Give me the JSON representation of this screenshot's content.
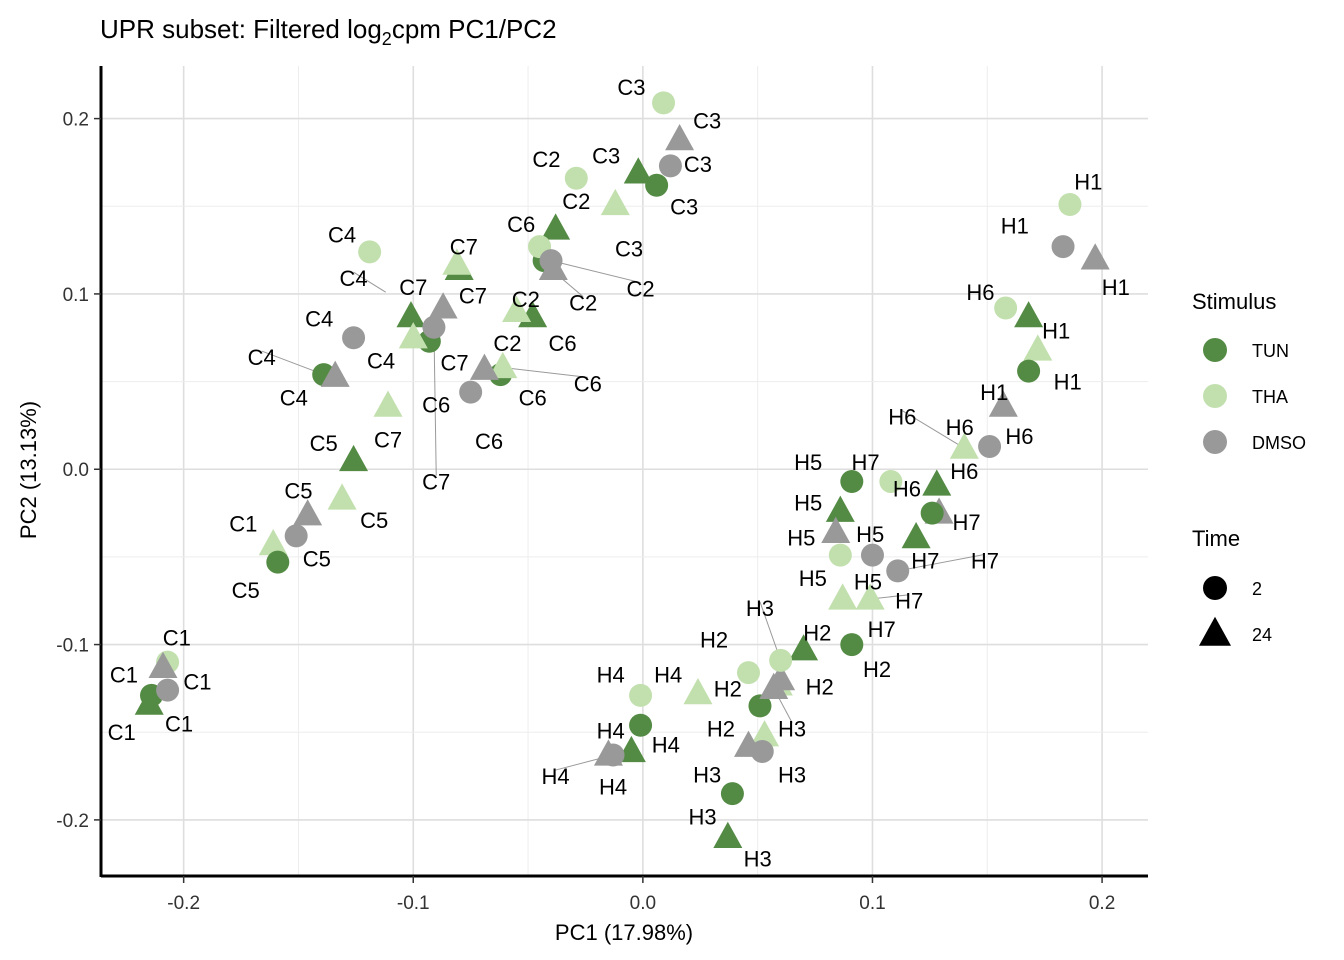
{
  "chart_data": {
    "type": "scatter",
    "title_main": "UPR subset: Filtered log",
    "title_sub": "2",
    "title_rest": "cpm PC1/PC2",
    "xlabel": "PC1 (17.98%)",
    "ylabel": "PC2 (13.13%)",
    "xlim": [
      -0.236,
      0.22
    ],
    "ylim": [
      -0.232,
      0.23
    ],
    "xticks": [
      -0.2,
      -0.1,
      0.0,
      0.1,
      0.2
    ],
    "xtick_labels": [
      "-0.2",
      "-0.1",
      "0.0",
      "0.1",
      "0.2"
    ],
    "yticks": [
      -0.2,
      -0.1,
      0.0,
      0.1,
      0.2
    ],
    "ytick_labels": [
      "-0.2",
      "-0.1",
      "0.0",
      "0.1",
      "0.2"
    ],
    "grid": true,
    "legend": {
      "placement": "right",
      "stimulus_title": "Stimulus",
      "stimulus": [
        {
          "name": "TUN",
          "color": "#548b44"
        },
        {
          "name": "THA",
          "color": "#c2e0ae"
        },
        {
          "name": "DMSO",
          "color": "#999999"
        }
      ],
      "time_title": "Time",
      "time": [
        {
          "name": "2",
          "shape": "circle"
        },
        {
          "name": "24",
          "shape": "triangle"
        }
      ]
    },
    "points": [
      {
        "label": "C1",
        "stim": "TUN",
        "time": "2",
        "x": -0.214,
        "y": -0.129
      },
      {
        "label": "C1",
        "stim": "TUN",
        "time": "24",
        "x": -0.215,
        "y": -0.134
      },
      {
        "label": "C1",
        "stim": "THA",
        "time": "2",
        "x": -0.207,
        "y": -0.11
      },
      {
        "label": "C1",
        "stim": "THA",
        "time": "24",
        "x": -0.161,
        "y": -0.043
      },
      {
        "label": "C1",
        "stim": "DMSO",
        "time": "2",
        "x": -0.207,
        "y": -0.126
      },
      {
        "label": "C1",
        "stim": "DMSO",
        "time": "24",
        "x": -0.209,
        "y": -0.113
      },
      {
        "label": "C5",
        "stim": "TUN",
        "time": "2",
        "x": -0.159,
        "y": -0.053
      },
      {
        "label": "C5",
        "stim": "TUN",
        "time": "24",
        "x": -0.126,
        "y": 0.005
      },
      {
        "label": "C5",
        "stim": "THA",
        "time": "24",
        "x": -0.131,
        "y": -0.017
      },
      {
        "label": "C5",
        "stim": "DMSO",
        "time": "2",
        "x": -0.151,
        "y": -0.038
      },
      {
        "label": "C5",
        "stim": "DMSO",
        "time": "24",
        "x": -0.146,
        "y": -0.026
      },
      {
        "label": "C4",
        "stim": "TUN",
        "time": "2",
        "x": -0.139,
        "y": 0.054
      },
      {
        "label": "C4",
        "stim": "THA",
        "time": "2",
        "x": -0.119,
        "y": 0.124
      },
      {
        "label": "C4",
        "stim": "DMSO",
        "time": "2",
        "x": -0.126,
        "y": 0.075
      },
      {
        "label": "C4",
        "stim": "DMSO",
        "time": "24",
        "x": -0.134,
        "y": 0.053
      },
      {
        "label": "C7",
        "stim": "THA",
        "time": "24",
        "x": -0.111,
        "y": 0.036
      },
      {
        "label": "C7",
        "stim": "TUN",
        "time": "24",
        "x": -0.101,
        "y": 0.087
      },
      {
        "label": "C7",
        "stim": "TUN",
        "time": "2",
        "x": -0.093,
        "y": 0.073
      },
      {
        "label": "C7",
        "stim": "THA",
        "time": "24",
        "x": -0.1,
        "y": 0.075
      },
      {
        "label": "C7",
        "stim": "DMSO",
        "time": "2",
        "x": -0.091,
        "y": 0.081
      },
      {
        "label": "C7",
        "stim": "DMSO",
        "time": "24",
        "x": -0.087,
        "y": 0.092
      },
      {
        "label": "C7",
        "stim": "TUN",
        "time": "24",
        "x": -0.08,
        "y": 0.114
      },
      {
        "label": "C7",
        "stim": "THA",
        "time": "24",
        "x": -0.081,
        "y": 0.117
      },
      {
        "label": "C6",
        "stim": "TUN",
        "time": "2",
        "x": -0.062,
        "y": 0.054
      },
      {
        "label": "C6",
        "stim": "THA",
        "time": "24",
        "x": -0.061,
        "y": 0.058
      },
      {
        "label": "C6",
        "stim": "DMSO",
        "time": "2",
        "x": -0.075,
        "y": 0.044
      },
      {
        "label": "C6",
        "stim": "DMSO",
        "time": "24",
        "x": -0.069,
        "y": 0.057
      },
      {
        "label": "C6",
        "stim": "TUN",
        "time": "24",
        "x": -0.038,
        "y": 0.137
      },
      {
        "label": "C6",
        "stim": "TUN",
        "time": "2",
        "x": -0.043,
        "y": 0.119
      },
      {
        "label": "C2",
        "stim": "TUN",
        "time": "24",
        "x": -0.048,
        "y": 0.087
      },
      {
        "label": "C2",
        "stim": "THA",
        "time": "24",
        "x": -0.055,
        "y": 0.09
      },
      {
        "label": "C2",
        "stim": "THA",
        "time": "2",
        "x": -0.045,
        "y": 0.127
      },
      {
        "label": "C2",
        "stim": "DMSO",
        "time": "2",
        "x": -0.04,
        "y": 0.119
      },
      {
        "label": "C2",
        "stim": "DMSO",
        "time": "24",
        "x": -0.039,
        "y": 0.114
      },
      {
        "label": "C2",
        "stim": "THA",
        "time": "2",
        "x": -0.029,
        "y": 0.166
      },
      {
        "label": "C3",
        "stim": "THA",
        "time": "24",
        "x": -0.012,
        "y": 0.151
      },
      {
        "label": "C3",
        "stim": "TUN",
        "time": "24",
        "x": -0.002,
        "y": 0.169
      },
      {
        "label": "C3",
        "stim": "TUN",
        "time": "2",
        "x": 0.006,
        "y": 0.162
      },
      {
        "label": "C3",
        "stim": "DMSO",
        "time": "2",
        "x": 0.012,
        "y": 0.173
      },
      {
        "label": "C3",
        "stim": "DMSO",
        "time": "24",
        "x": 0.016,
        "y": 0.188
      },
      {
        "label": "C3",
        "stim": "THA",
        "time": "2",
        "x": 0.009,
        "y": 0.209
      },
      {
        "label": "H1",
        "stim": "THA",
        "time": "2",
        "x": 0.186,
        "y": 0.151
      },
      {
        "label": "H1",
        "stim": "DMSO",
        "time": "2",
        "x": 0.183,
        "y": 0.127
      },
      {
        "label": "H1",
        "stim": "DMSO",
        "time": "24",
        "x": 0.197,
        "y": 0.12
      },
      {
        "label": "H1",
        "stim": "THA",
        "time": "24",
        "x": 0.172,
        "y": 0.068
      },
      {
        "label": "H1",
        "stim": "TUN",
        "time": "2",
        "x": 0.168,
        "y": 0.056
      },
      {
        "label": "H1",
        "stim": "DMSO",
        "time": "24",
        "x": 0.157,
        "y": 0.036
      },
      {
        "label": "H6",
        "stim": "THA",
        "time": "2",
        "x": 0.158,
        "y": 0.092
      },
      {
        "label": "H6",
        "stim": "TUN",
        "time": "24",
        "x": 0.168,
        "y": 0.087
      },
      {
        "label": "H6",
        "stim": "THA",
        "time": "24",
        "x": 0.14,
        "y": 0.012
      },
      {
        "label": "H6",
        "stim": "DMSO",
        "time": "2",
        "x": 0.151,
        "y": 0.013
      },
      {
        "label": "H6",
        "stim": "TUN",
        "time": "24",
        "x": 0.128,
        "y": -0.009
      },
      {
        "label": "H7",
        "stim": "THA",
        "time": "2",
        "x": 0.108,
        "y": -0.007
      },
      {
        "label": "H7",
        "stim": "DMSO",
        "time": "24",
        "x": 0.129,
        "y": -0.025
      },
      {
        "label": "H7",
        "stim": "TUN",
        "time": "2",
        "x": 0.126,
        "y": -0.025
      },
      {
        "label": "H7",
        "stim": "TUN",
        "time": "24",
        "x": 0.119,
        "y": -0.039
      },
      {
        "label": "H7",
        "stim": "DMSO",
        "time": "2",
        "x": 0.111,
        "y": -0.058
      },
      {
        "label": "H7",
        "stim": "THA",
        "time": "24",
        "x": 0.099,
        "y": -0.074
      },
      {
        "label": "H5",
        "stim": "TUN",
        "time": "2",
        "x": 0.091,
        "y": -0.007
      },
      {
        "label": "H5",
        "stim": "TUN",
        "time": "24",
        "x": 0.086,
        "y": -0.024
      },
      {
        "label": "H5",
        "stim": "DMSO",
        "time": "24",
        "x": 0.084,
        "y": -0.036
      },
      {
        "label": "H5",
        "stim": "THA",
        "time": "2",
        "x": 0.086,
        "y": -0.049
      },
      {
        "label": "H5",
        "stim": "DMSO",
        "time": "2",
        "x": 0.1,
        "y": -0.049
      },
      {
        "label": "H5",
        "stim": "THA",
        "time": "24",
        "x": 0.087,
        "y": -0.074
      },
      {
        "label": "H2",
        "stim": "TUN",
        "time": "2",
        "x": 0.091,
        "y": -0.1
      },
      {
        "label": "H2",
        "stim": "TUN",
        "time": "24",
        "x": 0.07,
        "y": -0.103
      },
      {
        "label": "H2",
        "stim": "THA",
        "time": "2",
        "x": 0.046,
        "y": -0.116
      },
      {
        "label": "H2",
        "stim": "THA",
        "time": "24",
        "x": 0.059,
        "y": -0.123
      },
      {
        "label": "H2",
        "stim": "DMSO",
        "time": "24",
        "x": 0.06,
        "y": -0.12
      },
      {
        "label": "H2",
        "stim": "TUN",
        "time": "2",
        "x": 0.051,
        "y": -0.135
      },
      {
        "label": "H3",
        "stim": "THA",
        "time": "2",
        "x": 0.06,
        "y": -0.109
      },
      {
        "label": "H3",
        "stim": "DMSO",
        "time": "24",
        "x": 0.057,
        "y": -0.125
      },
      {
        "label": "H3",
        "stim": "THA",
        "time": "24",
        "x": 0.053,
        "y": -0.152
      },
      {
        "label": "H3",
        "stim": "DMSO",
        "time": "24",
        "x": 0.046,
        "y": -0.158
      },
      {
        "label": "H3",
        "stim": "DMSO",
        "time": "2",
        "x": 0.052,
        "y": -0.161
      },
      {
        "label": "H3",
        "stim": "TUN",
        "time": "2",
        "x": 0.039,
        "y": -0.185
      },
      {
        "label": "H3",
        "stim": "TUN",
        "time": "24",
        "x": 0.037,
        "y": -0.21
      },
      {
        "label": "H4",
        "stim": "THA",
        "time": "2",
        "x": -0.001,
        "y": -0.129
      },
      {
        "label": "H4",
        "stim": "THA",
        "time": "24",
        "x": 0.024,
        "y": -0.128
      },
      {
        "label": "H4",
        "stim": "TUN",
        "time": "2",
        "x": -0.001,
        "y": -0.146
      },
      {
        "label": "H4",
        "stim": "TUN",
        "time": "24",
        "x": -0.005,
        "y": -0.161
      },
      {
        "label": "H4",
        "stim": "DMSO",
        "time": "2",
        "x": -0.013,
        "y": -0.163
      },
      {
        "label": "H4",
        "stim": "DMSO",
        "time": "24",
        "x": -0.015,
        "y": -0.163
      }
    ],
    "labels": [
      {
        "text": "C3",
        "x": -0.005,
        "y": 0.218
      },
      {
        "text": "C3",
        "x": 0.028,
        "y": 0.199
      },
      {
        "text": "C3",
        "x": -0.016,
        "y": 0.179
      },
      {
        "text": "C3",
        "x": 0.024,
        "y": 0.174
      },
      {
        "text": "C3",
        "x": 0.018,
        "y": 0.15
      },
      {
        "text": "C3",
        "x": -0.006,
        "y": 0.126
      },
      {
        "text": "C2",
        "x": -0.042,
        "y": 0.177
      },
      {
        "text": "C2",
        "x": -0.029,
        "y": 0.153
      },
      {
        "text": "C2",
        "x": -0.051,
        "y": 0.097
      },
      {
        "text": "C2",
        "x": -0.059,
        "y": 0.072
      },
      {
        "text": "C2",
        "x": -0.026,
        "y": 0.095,
        "lx": -0.04,
        "ly": 0.114
      },
      {
        "text": "C2",
        "x": -0.001,
        "y": 0.103,
        "lx": -0.04,
        "ly": 0.119
      },
      {
        "text": "C6",
        "x": -0.053,
        "y": 0.14
      },
      {
        "text": "C6",
        "x": -0.035,
        "y": 0.072
      },
      {
        "text": "C6",
        "x": -0.024,
        "y": 0.049,
        "lx": -0.061,
        "ly": 0.058
      },
      {
        "text": "C6",
        "x": -0.048,
        "y": 0.041
      },
      {
        "text": "C6",
        "x": -0.09,
        "y": 0.037
      },
      {
        "text": "C6",
        "x": -0.067,
        "y": 0.016
      },
      {
        "text": "C7",
        "x": -0.078,
        "y": 0.127
      },
      {
        "text": "C7",
        "x": -0.1,
        "y": 0.104
      },
      {
        "text": "C7",
        "x": -0.074,
        "y": 0.099
      },
      {
        "text": "C7",
        "x": -0.082,
        "y": 0.061
      },
      {
        "text": "C7",
        "x": -0.111,
        "y": 0.017
      },
      {
        "text": "C7",
        "x": -0.09,
        "y": -0.007,
        "lx": -0.091,
        "ly": 0.081
      },
      {
        "text": "C4",
        "x": -0.131,
        "y": 0.134
      },
      {
        "text": "C4",
        "x": -0.126,
        "y": 0.109,
        "lx": -0.112,
        "ly": 0.101
      },
      {
        "text": "C4",
        "x": -0.141,
        "y": 0.086
      },
      {
        "text": "C4",
        "x": -0.114,
        "y": 0.062
      },
      {
        "text": "C4",
        "x": -0.166,
        "y": 0.064,
        "lx": -0.139,
        "ly": 0.054
      },
      {
        "text": "C4",
        "x": -0.152,
        "y": 0.041
      },
      {
        "text": "C5",
        "x": -0.139,
        "y": 0.015
      },
      {
        "text": "C5",
        "x": -0.15,
        "y": -0.012
      },
      {
        "text": "C5",
        "x": -0.117,
        "y": -0.029
      },
      {
        "text": "C5",
        "x": -0.142,
        "y": -0.051
      },
      {
        "text": "C5",
        "x": -0.173,
        "y": -0.069
      },
      {
        "text": "C1",
        "x": -0.174,
        "y": -0.031
      },
      {
        "text": "C1",
        "x": -0.203,
        "y": -0.096
      },
      {
        "text": "C1",
        "x": -0.226,
        "y": -0.117
      },
      {
        "text": "C1",
        "x": -0.194,
        "y": -0.121
      },
      {
        "text": "C1",
        "x": -0.202,
        "y": -0.145
      },
      {
        "text": "C1",
        "x": -0.227,
        "y": -0.15
      },
      {
        "text": "H1",
        "x": 0.194,
        "y": 0.164
      },
      {
        "text": "H1",
        "x": 0.162,
        "y": 0.139
      },
      {
        "text": "H1",
        "x": 0.206,
        "y": 0.104
      },
      {
        "text": "H1",
        "x": 0.18,
        "y": 0.079
      },
      {
        "text": "H1",
        "x": 0.185,
        "y": 0.05
      },
      {
        "text": "H1",
        "x": 0.153,
        "y": 0.044
      },
      {
        "text": "H6",
        "x": 0.147,
        "y": 0.101
      },
      {
        "text": "H6",
        "x": 0.113,
        "y": 0.03,
        "lx": 0.14,
        "ly": 0.012
      },
      {
        "text": "H6",
        "x": 0.138,
        "y": 0.024
      },
      {
        "text": "H6",
        "x": 0.164,
        "y": 0.019
      },
      {
        "text": "H6",
        "x": 0.14,
        "y": -0.001
      },
      {
        "text": "H6",
        "x": 0.115,
        "y": -0.011
      },
      {
        "text": "H7",
        "x": 0.097,
        "y": 0.004
      },
      {
        "text": "H7",
        "x": 0.141,
        "y": -0.03
      },
      {
        "text": "H7",
        "x": 0.123,
        "y": -0.052
      },
      {
        "text": "H7",
        "x": 0.149,
        "y": -0.052,
        "lx": 0.111,
        "ly": -0.058
      },
      {
        "text": "H7",
        "x": 0.116,
        "y": -0.075,
        "lx": 0.099,
        "ly": -0.074
      },
      {
        "text": "H7",
        "x": 0.104,
        "y": -0.091
      },
      {
        "text": "H5",
        "x": 0.072,
        "y": 0.004
      },
      {
        "text": "H5",
        "x": 0.072,
        "y": -0.019
      },
      {
        "text": "H5",
        "x": 0.069,
        "y": -0.039
      },
      {
        "text": "H5",
        "x": 0.099,
        "y": -0.037
      },
      {
        "text": "H5",
        "x": 0.074,
        "y": -0.062
      },
      {
        "text": "H5",
        "x": 0.098,
        "y": -0.064
      },
      {
        "text": "H3",
        "x": 0.051,
        "y": -0.079,
        "lx": 0.06,
        "ly": -0.109
      },
      {
        "text": "H3",
        "x": 0.065,
        "y": -0.148,
        "lx": 0.057,
        "ly": -0.125
      },
      {
        "text": "H3",
        "x": 0.065,
        "y": -0.174
      },
      {
        "text": "H3",
        "x": 0.028,
        "y": -0.174
      },
      {
        "text": "H3",
        "x": 0.026,
        "y": -0.198
      },
      {
        "text": "H3",
        "x": 0.05,
        "y": -0.222
      },
      {
        "text": "H2",
        "x": 0.031,
        "y": -0.097
      },
      {
        "text": "H2",
        "x": 0.076,
        "y": -0.093
      },
      {
        "text": "H2",
        "x": 0.102,
        "y": -0.114
      },
      {
        "text": "H2",
        "x": 0.077,
        "y": -0.124
      },
      {
        "text": "H2",
        "x": 0.037,
        "y": -0.125
      },
      {
        "text": "H2",
        "x": 0.034,
        "y": -0.148
      },
      {
        "text": "H4",
        "x": -0.014,
        "y": -0.117
      },
      {
        "text": "H4",
        "x": 0.011,
        "y": -0.117
      },
      {
        "text": "H4",
        "x": -0.014,
        "y": -0.149
      },
      {
        "text": "H4",
        "x": 0.01,
        "y": -0.157
      },
      {
        "text": "H4",
        "x": -0.038,
        "y": -0.175,
        "lx": -0.013,
        "ly": -0.163
      },
      {
        "text": "H4",
        "x": -0.013,
        "y": -0.181
      }
    ]
  }
}
